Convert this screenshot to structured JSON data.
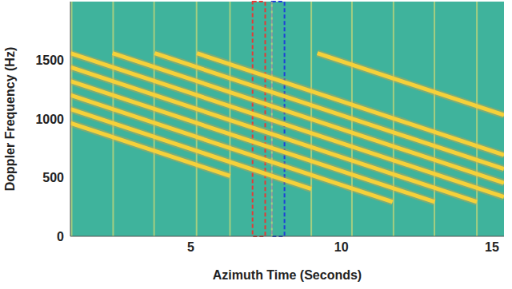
{
  "chart_data": {
    "type": "line",
    "x_label": "Azimuth Time (Seconds)",
    "y_label": "Doppler Frequency (Hz)",
    "xlim": [
      1,
      15.4
    ],
    "ylim": [
      0,
      2000
    ],
    "xticks": [
      5,
      10,
      15
    ],
    "yticks": [
      0,
      500,
      1000,
      1500
    ],
    "grid": false,
    "color": "#f5d13a",
    "series": [
      {
        "x": [
          1,
          6.3
        ],
        "values": [
          965,
          515
        ]
      },
      {
        "x": [
          1,
          9.0
        ],
        "values": [
          1084,
          404
        ]
      },
      {
        "x": [
          1,
          11.7
        ],
        "values": [
          1203,
          293
        ]
      },
      {
        "x": [
          1,
          13.1
        ],
        "values": [
          1322,
          293
        ]
      },
      {
        "x": [
          1,
          14.5
        ],
        "values": [
          1441,
          293
        ]
      },
      {
        "x": [
          1,
          15.4
        ],
        "values": [
          1560,
          336
        ]
      },
      {
        "x": [
          2.4,
          15.4
        ],
        "values": [
          1560,
          455
        ]
      },
      {
        "x": [
          3.8,
          15.4
        ],
        "values": [
          1560,
          574
        ]
      },
      {
        "x": [
          5.2,
          15.4
        ],
        "values": [
          1560,
          693
        ]
      },
      {
        "x": [
          9.2,
          15.4
        ],
        "values": [
          1560,
          1033
        ]
      }
    ],
    "vertical_lines": [
      1.04,
      2.42,
      3.78,
      5.19,
      6.3,
      7.69,
      9.0,
      10.35,
      11.73,
      13.09,
      14.5
    ],
    "regions": [
      {
        "x": [
          7.05,
          7.47
        ],
        "color": "#e53935",
        "line_style": "dashed"
      },
      {
        "x": [
          7.69,
          8.11
        ],
        "color": "#1e3fd8",
        "line_style": "dashed"
      }
    ]
  }
}
